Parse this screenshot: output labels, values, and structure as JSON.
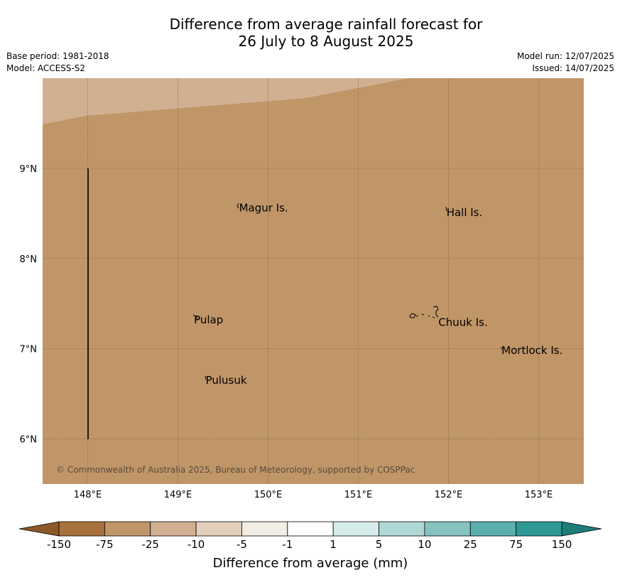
{
  "title": {
    "line1": "Difference from average rainfall forecast for",
    "line2": "26 July to 8 August 2025"
  },
  "info": {
    "base_period": "Base period: 1981-2018",
    "model": "Model: ACCESS-S2",
    "model_run": "Model run: 12/07/2025",
    "issued": "Issued: 14/07/2025"
  },
  "map": {
    "lon_range": [
      147.5,
      153.5
    ],
    "lat_range": [
      5.5,
      10.0
    ],
    "background_color": "#c09669",
    "drier_band_color": "#d1b092",
    "lon_ticks": [
      {
        "value": 148,
        "label": "148°E"
      },
      {
        "value": 149,
        "label": "149°E"
      },
      {
        "value": 150,
        "label": "150°E"
      },
      {
        "value": 151,
        "label": "151°E"
      },
      {
        "value": 152,
        "label": "152°E"
      },
      {
        "value": 153,
        "label": "153°E"
      }
    ],
    "lat_ticks": [
      {
        "value": 9,
        "label": "9°N"
      },
      {
        "value": 8,
        "label": "8°N"
      },
      {
        "value": 7,
        "label": "7°N"
      },
      {
        "value": 6,
        "label": "6°N"
      }
    ],
    "places": [
      {
        "name": "Magur Is.",
        "lon": 149.67,
        "lat": 8.57
      },
      {
        "name": "Hall Is.",
        "lon": 151.97,
        "lat": 8.52
      },
      {
        "name": "Pulap",
        "lon": 149.17,
        "lat": 7.33
      },
      {
        "name": "Chuuk Is.",
        "lon": 151.88,
        "lat": 7.3
      },
      {
        "name": "Mortlock Is.",
        "lon": 152.58,
        "lat": 6.99
      },
      {
        "name": "Pulusuk",
        "lon": 149.3,
        "lat": 6.66
      }
    ],
    "copyright": "© Commonwealth of Australia 2025, Bureau of Meteorology, supported by COSPPac"
  },
  "colorbar": {
    "title": "Difference from average (mm)",
    "labels": [
      "-150",
      "-75",
      "-25",
      "-10",
      "-5",
      "-1",
      "1",
      "5",
      "10",
      "25",
      "75",
      "150"
    ],
    "colors": [
      "#a8703a",
      "#c09669",
      "#d1b092",
      "#e3cfbb",
      "#f2eee6",
      "#ffffff",
      "#d6ecea",
      "#afd7d5",
      "#86c2c0",
      "#5aaeab",
      "#2e9994"
    ],
    "low_extend_color": "#8c5828",
    "high_extend_color": "#1e7d78"
  }
}
